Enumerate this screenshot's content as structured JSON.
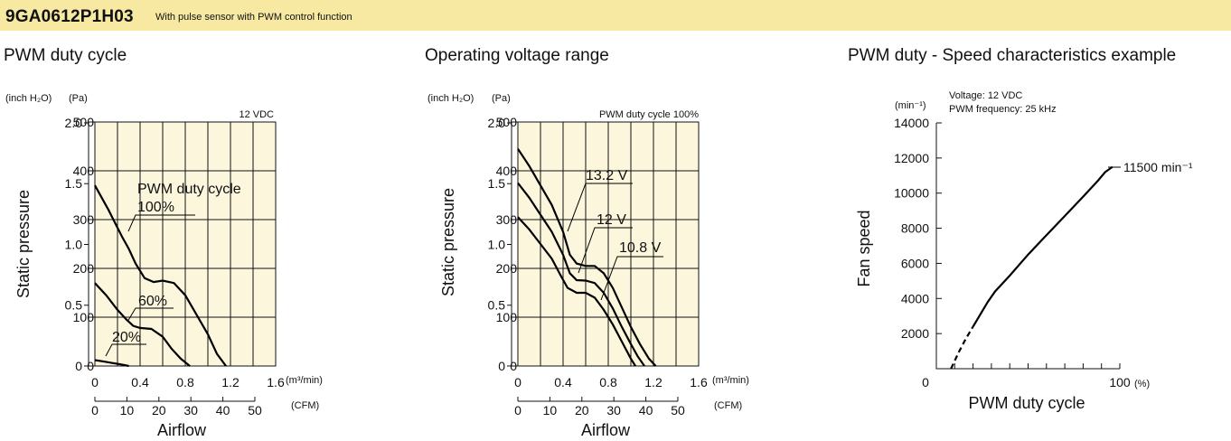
{
  "header": {
    "model": "9GA0612P1H03",
    "description": "With pulse sensor with PWM control function"
  },
  "colors": {
    "banner": "#f7e9a2",
    "plot_bg": "#fbf6dc",
    "line": "#000000"
  },
  "chart_data": [
    {
      "type": "line",
      "title": "PWM duty cycle",
      "xlabel": "Airflow",
      "ylabel": "Static pressure",
      "condition": "12 VDC",
      "legend_title": "PWM duty cycle",
      "x_unit": "(m³/min)",
      "x2_unit": "(CFM)",
      "y_unit_left": "(inch H₂O)",
      "y_unit_right": "(Pa)",
      "x_ticks": [
        "0",
        "0.4",
        "0.8",
        "1.2",
        "1.6"
      ],
      "x2_ticks": [
        "0",
        "10",
        "20",
        "30",
        "40",
        "50"
      ],
      "y_ticks_pa": [
        "0",
        "100",
        "200",
        "300",
        "400",
        "500"
      ],
      "y_ticks_inch": [
        "0",
        "0.5",
        "1.0",
        "1.5",
        "2.0"
      ],
      "xlim": [
        0,
        1.6
      ],
      "ylim": [
        0,
        500
      ],
      "series": [
        {
          "name": "100%",
          "x": [
            0,
            0.12,
            0.24,
            0.3,
            0.36,
            0.44,
            0.52,
            0.6,
            0.7,
            0.8,
            0.9,
            1.0,
            1.08,
            1.16
          ],
          "y": [
            370,
            320,
            265,
            240,
            210,
            180,
            172,
            175,
            170,
            145,
            105,
            65,
            25,
            0
          ]
        },
        {
          "name": "60%",
          "x": [
            0,
            0.1,
            0.2,
            0.28,
            0.34,
            0.4,
            0.5,
            0.6,
            0.68,
            0.76,
            0.84
          ],
          "y": [
            170,
            145,
            115,
            95,
            82,
            78,
            76,
            60,
            35,
            15,
            0
          ]
        },
        {
          "name": "20%",
          "x": [
            0,
            0.08,
            0.16,
            0.24,
            0.3
          ],
          "y": [
            12,
            9,
            6,
            3,
            0
          ]
        }
      ]
    },
    {
      "type": "line",
      "title": "Operating voltage range",
      "xlabel": "Airflow",
      "ylabel": "Static pressure",
      "condition": "PWM duty cycle 100%",
      "x_unit": "(m³/min)",
      "x2_unit": "(CFM)",
      "y_unit_left": "(inch H₂O)",
      "y_unit_right": "(Pa)",
      "x_ticks": [
        "0",
        "0.4",
        "0.8",
        "1.2",
        "1.6"
      ],
      "x2_ticks": [
        "0",
        "10",
        "20",
        "30",
        "40",
        "50"
      ],
      "y_ticks_pa": [
        "0",
        "100",
        "200",
        "300",
        "400",
        "500"
      ],
      "y_ticks_inch": [
        "0",
        "0.5",
        "1.0",
        "1.5",
        "2.0"
      ],
      "xlim": [
        0,
        1.6
      ],
      "ylim": [
        0,
        500
      ],
      "series": [
        {
          "name": "13.2 V",
          "x": [
            0,
            0.1,
            0.2,
            0.3,
            0.4,
            0.46,
            0.52,
            0.6,
            0.68,
            0.76,
            0.84,
            0.92,
            1.0,
            1.08,
            1.16,
            1.22
          ],
          "y": [
            445,
            410,
            370,
            330,
            275,
            228,
            210,
            205,
            205,
            190,
            160,
            120,
            80,
            45,
            15,
            0
          ]
        },
        {
          "name": "12 V",
          "x": [
            0,
            0.1,
            0.2,
            0.3,
            0.4,
            0.46,
            0.52,
            0.6,
            0.68,
            0.76,
            0.84,
            0.92,
            1.0,
            1.06,
            1.12
          ],
          "y": [
            375,
            345,
            310,
            275,
            228,
            190,
            176,
            175,
            170,
            150,
            118,
            80,
            45,
            20,
            0
          ]
        },
        {
          "name": "10.8 V",
          "x": [
            0,
            0.1,
            0.2,
            0.3,
            0.38,
            0.44,
            0.52,
            0.6,
            0.68,
            0.76,
            0.84,
            0.92,
            1.0,
            1.04
          ],
          "y": [
            305,
            280,
            250,
            220,
            185,
            160,
            150,
            150,
            140,
            115,
            85,
            50,
            15,
            0
          ]
        }
      ],
      "annotations": [
        "13.2 V",
        "12 V",
        "10.8 V"
      ]
    },
    {
      "type": "line",
      "title": "PWM duty - Speed characteristics example",
      "xlabel": "PWM duty cycle",
      "ylabel": "Fan speed",
      "x_unit": "(%)",
      "y_unit": "(min⁻¹)",
      "condition_lines": [
        "Voltage: 12 VDC",
        "PWM frequency: 25 kHz"
      ],
      "x_ticks": [
        "0",
        "100"
      ],
      "y_ticks": [
        "2000",
        "4000",
        "6000",
        "8000",
        "10000",
        "12000",
        "14000"
      ],
      "y_zero_label": "0",
      "xlim": [
        0,
        100
      ],
      "ylim": [
        0,
        14000
      ],
      "series": [
        {
          "name": "",
          "style": "dashed",
          "x": [
            8,
            12,
            16,
            20
          ],
          "y": [
            0,
            900,
            1700,
            2400
          ]
        },
        {
          "name": "",
          "style": "solid",
          "x": [
            20,
            24,
            28,
            32,
            40,
            50,
            60,
            70,
            80,
            88,
            92,
            96
          ],
          "y": [
            2400,
            3100,
            3800,
            4400,
            5300,
            6500,
            7600,
            8700,
            9800,
            10700,
            11200,
            11500
          ]
        }
      ],
      "max_label": "11500",
      "max_label_unit": "min⁻¹"
    }
  ]
}
